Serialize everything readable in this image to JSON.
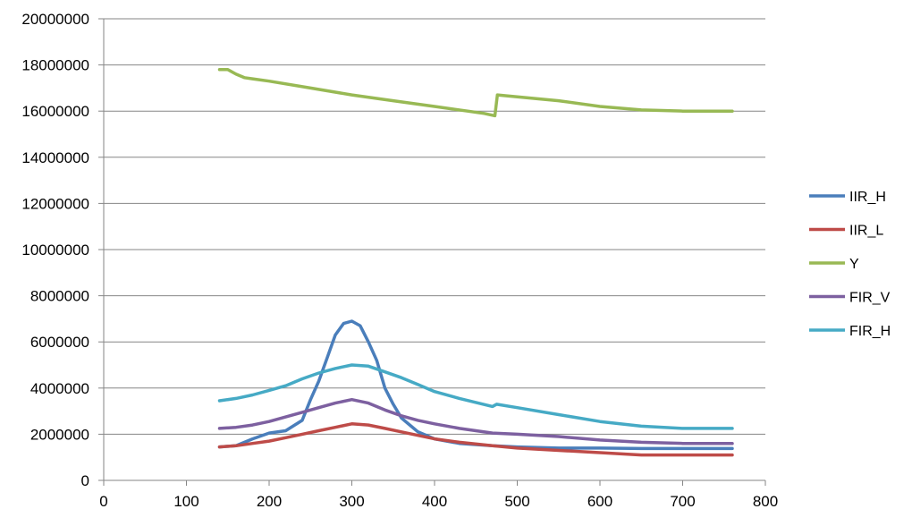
{
  "chart_data": {
    "type": "line",
    "title": "",
    "xlabel": "",
    "ylabel": "",
    "xlim": [
      0,
      800
    ],
    "ylim": [
      0,
      20000000
    ],
    "x_ticks": [
      "0",
      "100",
      "200",
      "300",
      "400",
      "500",
      "600",
      "700",
      "800"
    ],
    "y_ticks": [
      "0",
      "2000000",
      "4000000",
      "6000000",
      "8000000",
      "10000000",
      "12000000",
      "14000000",
      "16000000",
      "18000000",
      "20000000"
    ],
    "grid": "horizontal",
    "legend_position": "right",
    "series": [
      {
        "name": "IIR_H",
        "color": "#4a7ebb",
        "x": [
          140,
          160,
          180,
          200,
          220,
          240,
          250,
          260,
          270,
          280,
          290,
          300,
          310,
          320,
          330,
          340,
          350,
          360,
          370,
          380,
          400,
          430,
          470,
          500,
          550,
          600,
          650,
          700,
          760
        ],
        "y": [
          1450000,
          1500000,
          1800000,
          2050000,
          2150000,
          2600000,
          3500000,
          4300000,
          5300000,
          6300000,
          6800000,
          6900000,
          6700000,
          6000000,
          5200000,
          4000000,
          3300000,
          2700000,
          2400000,
          2100000,
          1800000,
          1600000,
          1500000,
          1450000,
          1400000,
          1400000,
          1380000,
          1380000,
          1380000
        ]
      },
      {
        "name": "IIR_L",
        "color": "#be4b48",
        "x": [
          140,
          160,
          180,
          200,
          220,
          240,
          260,
          280,
          300,
          320,
          340,
          360,
          380,
          400,
          430,
          470,
          500,
          550,
          600,
          650,
          700,
          760
        ],
        "y": [
          1450000,
          1500000,
          1600000,
          1700000,
          1850000,
          2000000,
          2150000,
          2300000,
          2450000,
          2400000,
          2250000,
          2100000,
          1950000,
          1800000,
          1650000,
          1500000,
          1400000,
          1300000,
          1200000,
          1100000,
          1100000,
          1100000
        ]
      },
      {
        "name": "Y",
        "color": "#98b954",
        "x": [
          140,
          150,
          160,
          170,
          180,
          200,
          250,
          300,
          350,
          400,
          440,
          460,
          473,
          476,
          490,
          550,
          600,
          650,
          700,
          760
        ],
        "y": [
          17800000,
          17800000,
          17600000,
          17450000,
          17400000,
          17300000,
          17000000,
          16700000,
          16450000,
          16200000,
          16000000,
          15900000,
          15800000,
          16700000,
          16650000,
          16450000,
          16200000,
          16050000,
          16000000,
          16000000
        ]
      },
      {
        "name": "FIR_V",
        "color": "#7d60a0",
        "x": [
          140,
          160,
          180,
          200,
          220,
          240,
          260,
          280,
          300,
          320,
          340,
          360,
          380,
          400,
          430,
          470,
          500,
          550,
          600,
          650,
          700,
          760
        ],
        "y": [
          2250000,
          2300000,
          2400000,
          2550000,
          2750000,
          2950000,
          3150000,
          3350000,
          3500000,
          3350000,
          3050000,
          2800000,
          2600000,
          2450000,
          2250000,
          2050000,
          2000000,
          1900000,
          1750000,
          1650000,
          1600000,
          1600000
        ]
      },
      {
        "name": "FIR_H",
        "color": "#46aac5",
        "x": [
          140,
          160,
          180,
          200,
          220,
          240,
          260,
          280,
          300,
          320,
          340,
          360,
          380,
          400,
          430,
          470,
          475,
          500,
          550,
          600,
          650,
          700,
          760
        ],
        "y": [
          3450000,
          3550000,
          3700000,
          3900000,
          4100000,
          4400000,
          4650000,
          4850000,
          5000000,
          4950000,
          4700000,
          4450000,
          4150000,
          3850000,
          3550000,
          3200000,
          3300000,
          3150000,
          2850000,
          2550000,
          2350000,
          2250000,
          2250000
        ]
      }
    ]
  }
}
